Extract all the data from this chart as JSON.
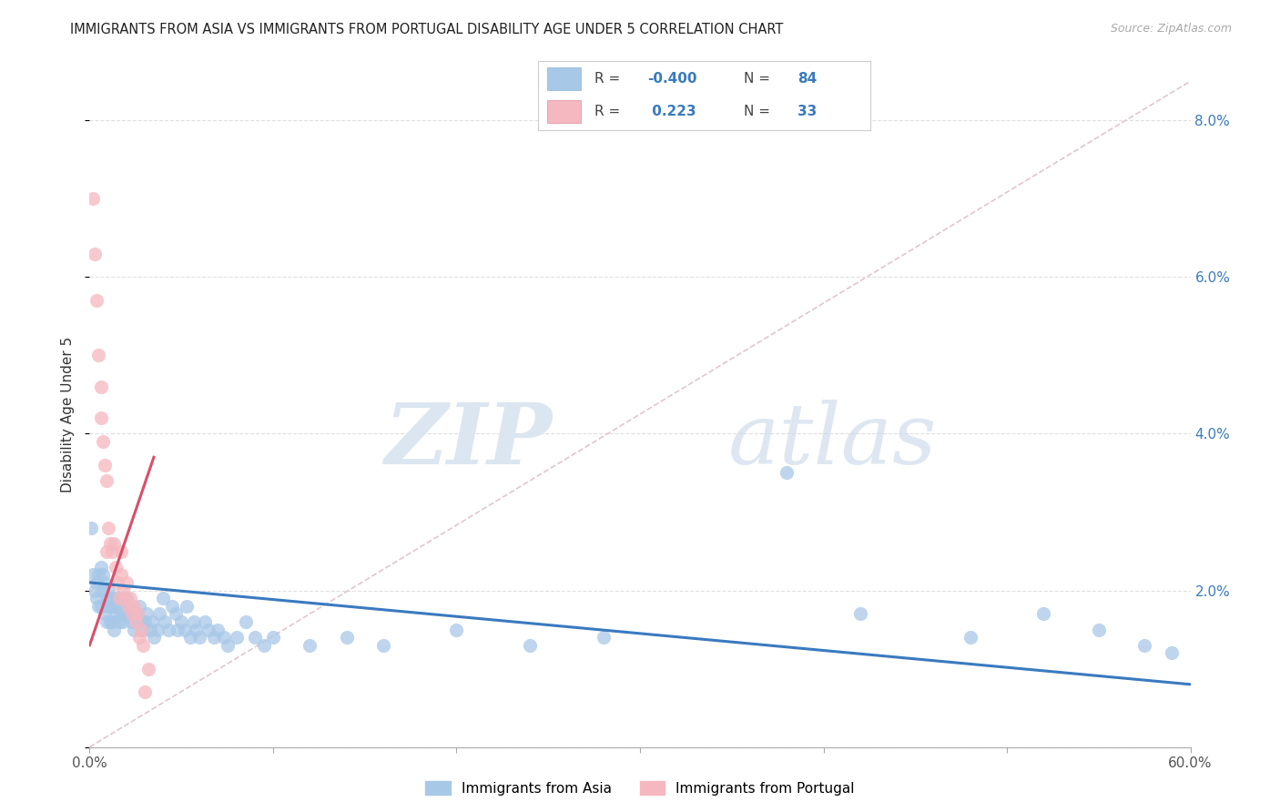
{
  "title": "IMMIGRANTS FROM ASIA VS IMMIGRANTS FROM PORTUGAL DISABILITY AGE UNDER 5 CORRELATION CHART",
  "source": "Source: ZipAtlas.com",
  "ylabel": "Disability Age Under 5",
  "legend_asia": "Immigrants from Asia",
  "legend_portugal": "Immigrants from Portugal",
  "R_asia": "-0.400",
  "N_asia": "84",
  "R_portugal": "0.223",
  "N_portugal": "33",
  "x_min": 0.0,
  "x_max": 0.6,
  "y_min": 0.0,
  "y_max": 0.085,
  "background_color": "#ffffff",
  "grid_color": "#e0e0e0",
  "asia_dot_color": "#a8c8e8",
  "portugal_dot_color": "#f5b8c0",
  "asia_line_color": "#3a7abf",
  "portugal_line_color": "#d94f6a",
  "diagonal_color": "#ddc0c8",
  "watermark_zip": "ZIP",
  "watermark_atlas": "atlas",
  "asia_x": [
    0.001,
    0.002,
    0.003,
    0.004,
    0.004,
    0.005,
    0.005,
    0.006,
    0.006,
    0.007,
    0.007,
    0.008,
    0.008,
    0.009,
    0.009,
    0.01,
    0.01,
    0.011,
    0.011,
    0.012,
    0.012,
    0.013,
    0.013,
    0.014,
    0.015,
    0.016,
    0.016,
    0.017,
    0.018,
    0.019,
    0.02,
    0.021,
    0.022,
    0.023,
    0.024,
    0.025,
    0.026,
    0.027,
    0.028,
    0.029,
    0.03,
    0.031,
    0.033,
    0.034,
    0.035,
    0.037,
    0.038,
    0.04,
    0.041,
    0.043,
    0.045,
    0.047,
    0.048,
    0.05,
    0.052,
    0.053,
    0.055,
    0.057,
    0.058,
    0.06,
    0.063,
    0.065,
    0.068,
    0.07,
    0.073,
    0.075,
    0.08,
    0.085,
    0.09,
    0.095,
    0.1,
    0.12,
    0.14,
    0.16,
    0.2,
    0.24,
    0.28,
    0.38,
    0.42,
    0.48,
    0.52,
    0.55,
    0.575,
    0.59
  ],
  "asia_y": [
    0.028,
    0.022,
    0.02,
    0.021,
    0.019,
    0.022,
    0.018,
    0.023,
    0.018,
    0.022,
    0.02,
    0.021,
    0.017,
    0.019,
    0.016,
    0.02,
    0.018,
    0.018,
    0.016,
    0.019,
    0.016,
    0.018,
    0.015,
    0.017,
    0.019,
    0.018,
    0.016,
    0.017,
    0.016,
    0.017,
    0.019,
    0.018,
    0.017,
    0.016,
    0.015,
    0.017,
    0.016,
    0.018,
    0.016,
    0.015,
    0.016,
    0.017,
    0.015,
    0.016,
    0.014,
    0.015,
    0.017,
    0.019,
    0.016,
    0.015,
    0.018,
    0.017,
    0.015,
    0.016,
    0.015,
    0.018,
    0.014,
    0.016,
    0.015,
    0.014,
    0.016,
    0.015,
    0.014,
    0.015,
    0.014,
    0.013,
    0.014,
    0.016,
    0.014,
    0.013,
    0.014,
    0.013,
    0.014,
    0.013,
    0.015,
    0.013,
    0.014,
    0.035,
    0.017,
    0.014,
    0.017,
    0.015,
    0.013,
    0.012
  ],
  "portugal_x": [
    0.002,
    0.003,
    0.004,
    0.005,
    0.006,
    0.006,
    0.007,
    0.008,
    0.009,
    0.009,
    0.01,
    0.011,
    0.012,
    0.013,
    0.014,
    0.015,
    0.016,
    0.017,
    0.017,
    0.018,
    0.019,
    0.02,
    0.021,
    0.022,
    0.023,
    0.024,
    0.025,
    0.026,
    0.027,
    0.028,
    0.029,
    0.03,
    0.032
  ],
  "portugal_y": [
    0.07,
    0.063,
    0.057,
    0.05,
    0.046,
    0.042,
    0.039,
    0.036,
    0.034,
    0.025,
    0.028,
    0.026,
    0.025,
    0.026,
    0.023,
    0.021,
    0.019,
    0.025,
    0.022,
    0.02,
    0.019,
    0.021,
    0.018,
    0.019,
    0.017,
    0.018,
    0.016,
    0.017,
    0.014,
    0.015,
    0.013,
    0.007,
    0.01
  ]
}
